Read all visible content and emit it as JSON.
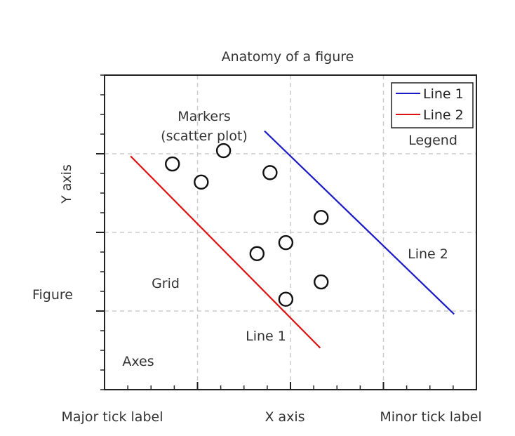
{
  "colors": {
    "top_bar": "#f08a75",
    "axes_frame": "#222222",
    "grid": "#cccccc",
    "line1": "#e01010",
    "line2": "#1a1ac8",
    "markers": "#111111",
    "text": "#333333"
  },
  "annotations": {
    "markers": "Markers",
    "scatter_plot": "(scatter plot)",
    "legend": "Legend",
    "line2": "Line 2",
    "grid": "Grid",
    "line1": "Line 1",
    "figure": "Figure",
    "axes": "Axes",
    "major_tick_label": "Major tick label",
    "minor_tick_label": "Minor tick label"
  },
  "chart_data": {
    "type": "line",
    "title": "Anatomy of a figure",
    "xlabel": "X axis",
    "ylabel": "Y axis",
    "xlim": [
      0,
      4
    ],
    "ylim": [
      0,
      4
    ],
    "grid": true,
    "legend_position": "top-right",
    "x_major_ticks": [
      1,
      2,
      3
    ],
    "y_major_ticks": [
      1,
      2,
      3
    ],
    "x_minor_step": 0.25,
    "y_minor_step": 0.25,
    "series": [
      {
        "name": "Line 1",
        "kind": "line",
        "color": "#e01010",
        "x": [
          0.28,
          2.32
        ],
        "y": [
          2.97,
          0.53
        ]
      },
      {
        "name": "Line 2",
        "kind": "line",
        "color": "#1a1ac8",
        "x": [
          1.72,
          3.76
        ],
        "y": [
          3.29,
          0.96
        ]
      },
      {
        "kind": "scatter",
        "marker": "open-circle",
        "color": "#111111",
        "x": [
          0.73,
          1.04,
          1.28,
          1.78,
          1.64,
          1.95,
          2.33,
          1.95,
          2.33
        ],
        "y": [
          2.87,
          2.64,
          3.04,
          2.76,
          1.73,
          1.87,
          2.19,
          1.15,
          1.37
        ]
      }
    ]
  }
}
